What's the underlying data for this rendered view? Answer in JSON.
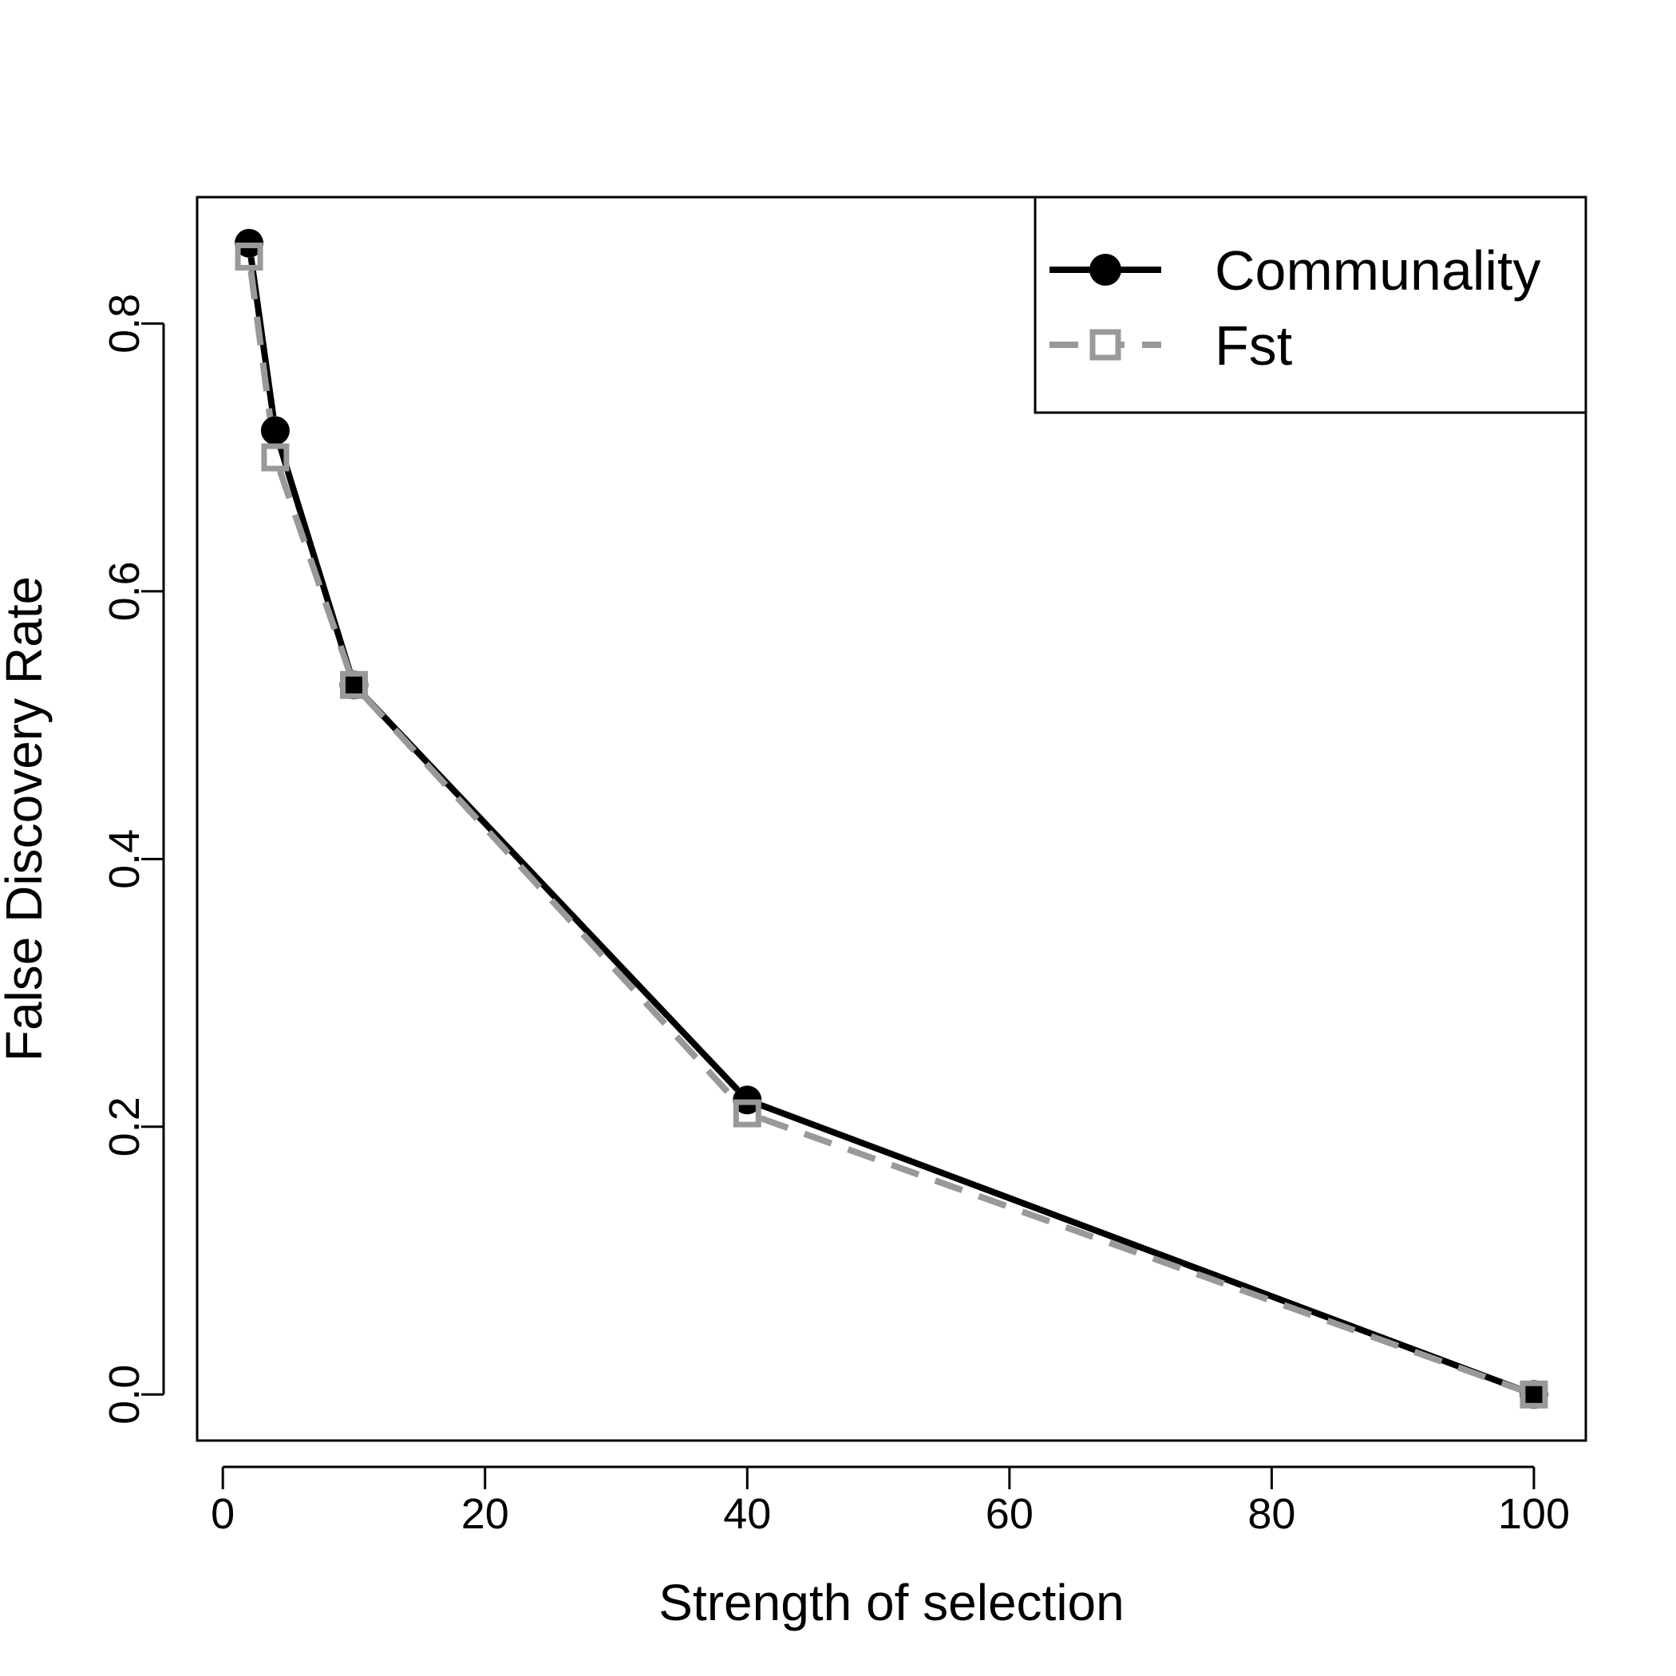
{
  "chart_data": {
    "type": "line",
    "title": "",
    "xlabel": "Strength of selection",
    "ylabel": "False Discovery Rate",
    "xlim": [
      -1.96,
      103.96
    ],
    "ylim": [
      -0.0344,
      0.8944
    ],
    "xticks": [
      0,
      20,
      40,
      60,
      80,
      100
    ],
    "yticks": [
      0.0,
      0.2,
      0.4,
      0.6,
      0.8
    ],
    "xtick_labels": [
      "0",
      "20",
      "40",
      "60",
      "80",
      "100"
    ],
    "ytick_labels": [
      "0.0",
      "0.2",
      "0.4",
      "0.6",
      "0.8"
    ],
    "legend_position": "top-right",
    "x": [
      2,
      4,
      10,
      40,
      100
    ],
    "series": [
      {
        "name": "Communality",
        "values": [
          0.86,
          0.72,
          0.53,
          0.22,
          0.0
        ],
        "color": "#000000",
        "line_style": "solid",
        "marker": "filled-circle"
      },
      {
        "name": "Fst",
        "values": [
          0.85,
          0.7,
          0.53,
          0.21,
          0.0
        ],
        "color": "#999999",
        "line_style": "dashed",
        "marker": "open-square"
      }
    ],
    "grid": false
  }
}
